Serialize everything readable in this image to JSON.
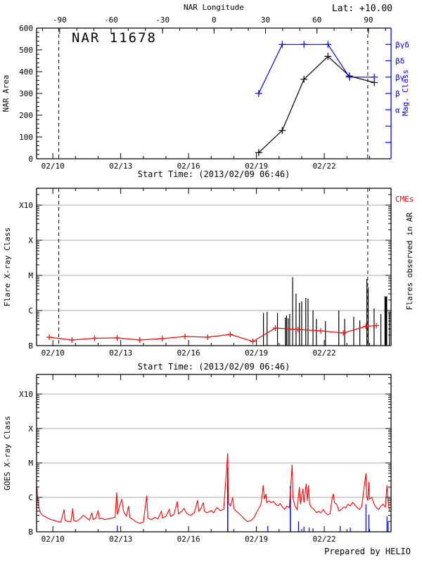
{
  "page": {
    "top_axis_label": "NAR Longitude",
    "lat_label": "Lat: +10.00",
    "footer": "Prepared by HELIO",
    "colors": {
      "accent_blue": "#0000ee",
      "accent_red": "#ff0000",
      "grid": "#aaaaaa",
      "axis": "#000000"
    }
  },
  "chart_data": [
    {
      "id": "nar-area-panel",
      "type": "line",
      "title": "NAR 11678",
      "ylabel": "NAR Area",
      "ylim": [
        0,
        600
      ],
      "yticks": [
        0,
        100,
        200,
        300,
        400,
        500,
        600
      ],
      "y_minor_step": 20,
      "x_domain_days": [
        9.28,
        24.95
      ],
      "xlabel": "Start Time: (2013/02/09 06:46)",
      "xticks": [
        {
          "day": 10,
          "label": "02/10"
        },
        {
          "day": 13,
          "label": "02/13"
        },
        {
          "day": 16,
          "label": "02/16"
        },
        {
          "day": 19,
          "label": "02/19"
        },
        {
          "day": 22,
          "label": "02/22"
        }
      ],
      "top_axis": {
        "label": "NAR Longitude",
        "ticks": [
          {
            "day": 10.3,
            "label": "-90"
          },
          {
            "day": 12.575,
            "label": "-60"
          },
          {
            "day": 14.85,
            "label": "-30"
          },
          {
            "day": 17.125,
            "label": "0"
          },
          {
            "day": 19.4,
            "label": "30"
          },
          {
            "day": 21.675,
            "label": "60"
          },
          {
            "day": 23.95,
            "label": "90"
          }
        ],
        "minor_step_days": 0.7583
      },
      "right_axis": {
        "label": "Mag. Class",
        "color": "#0000ee",
        "ticks": [
          {
            "value": 525,
            "label": "βγδ"
          },
          {
            "value": 450,
            "label": "βδ"
          },
          {
            "value": 375,
            "label": "βγ"
          },
          {
            "value": 300,
            "label": "β"
          },
          {
            "value": 225,
            "label": "α"
          },
          {
            "value": 150,
            "label": ""
          },
          {
            "value": 75,
            "label": ""
          }
        ]
      },
      "dashed_lines_days": [
        10.26,
        23.92
      ],
      "lat_label": "Lat: +10.00",
      "series": [
        {
          "name": "nar-area",
          "color": "#000000",
          "marker": "plus",
          "x": [
            19.1,
            20.14,
            21.1,
            22.16,
            23.11,
            24.21
          ],
          "y": [
            28,
            130,
            365,
            470,
            380,
            350
          ]
        },
        {
          "name": "mag-class",
          "color": "#0000ee",
          "marker": "plus",
          "x": [
            19.1,
            20.14,
            21.1,
            22.16,
            23.11,
            24.21
          ],
          "y": [
            300,
            525,
            525,
            525,
            375,
            375
          ],
          "class_labels": [
            "β",
            "βγδ",
            "βγδ",
            "βγδ",
            "βγ",
            "βγ"
          ]
        }
      ]
    },
    {
      "id": "flare-xray-panel",
      "type": "log-line-bars",
      "ylabel": "Flare X-ray Class",
      "yticks": [
        {
          "log": 0,
          "label": "B"
        },
        {
          "log": 1,
          "label": "C"
        },
        {
          "log": 2,
          "label": "M"
        },
        {
          "log": 3,
          "label": "X"
        },
        {
          "log": 4,
          "label": "X10"
        }
      ],
      "ylim_log": [
        0,
        4.48
      ],
      "grid_logs": [
        1,
        2,
        3,
        4
      ],
      "xlabel": "Start Time: (2013/02/09 06:46)",
      "xticks": [
        {
          "day": 10,
          "label": "02/10"
        },
        {
          "day": 13,
          "label": "02/13"
        },
        {
          "day": 16,
          "label": "02/16"
        },
        {
          "day": 19,
          "label": "02/19"
        },
        {
          "day": 22,
          "label": "02/22"
        }
      ],
      "dashed_lines_days": [
        10.26,
        23.92
      ],
      "right_labels": [
        {
          "text": "CMEs",
          "color": "#ff0000"
        },
        {
          "text": "Flares observed in AR",
          "color": "#000000"
        }
      ],
      "background_series": {
        "name": "daily-background-flux",
        "color": "#ff0000",
        "marker": "plus",
        "points": [
          [
            9.84,
            0.24
          ],
          [
            10.84,
            0.16
          ],
          [
            11.84,
            0.21
          ],
          [
            12.84,
            0.22
          ],
          [
            13.84,
            0.16
          ],
          [
            14.84,
            0.2
          ],
          [
            15.84,
            0.26
          ],
          [
            16.84,
            0.24
          ],
          [
            17.84,
            0.32
          ],
          [
            18.84,
            0.12
          ],
          [
            19.84,
            0.5
          ],
          [
            20.84,
            0.46
          ],
          [
            21.84,
            0.42
          ],
          [
            22.84,
            0.36
          ],
          [
            23.84,
            0.55
          ],
          [
            24.3,
            0.57
          ]
        ]
      },
      "flare_bars": {
        "name": "flares-in-ar",
        "color": "#000000",
        "points": [
          [
            19.31,
            0.93
          ],
          [
            19.47,
            0.96
          ],
          [
            19.93,
            0.93
          ],
          [
            20.28,
            0.8
          ],
          [
            20.33,
            0.86
          ],
          [
            20.4,
            0.78
          ],
          [
            20.47,
            0.9
          ],
          [
            20.6,
            1.95
          ],
          [
            20.75,
            1.48
          ],
          [
            20.9,
            1.22
          ],
          [
            21.0,
            1.26
          ],
          [
            21.18,
            1.36
          ],
          [
            21.28,
            1.34
          ],
          [
            21.5,
            1.0
          ],
          [
            21.65,
            0.76
          ],
          [
            22.05,
            0.7
          ],
          [
            22.64,
            1.0
          ],
          [
            22.9,
            0.76
          ],
          [
            23.3,
            0.82
          ],
          [
            23.57,
            0.72
          ],
          [
            23.88,
            1.9
          ],
          [
            23.94,
            1.66
          ],
          [
            24.2,
            1.06
          ],
          [
            24.5,
            0.9
          ],
          [
            24.7,
            1.4
          ],
          [
            24.74,
            1.4
          ],
          [
            24.88,
            0.95
          ]
        ]
      }
    },
    {
      "id": "goes-xray-panel",
      "type": "log-line",
      "ylabel": "GOES X-ray Class",
      "yticks": [
        {
          "log": 0,
          "label": "B"
        },
        {
          "log": 1,
          "label": "C"
        },
        {
          "log": 2,
          "label": "M"
        },
        {
          "log": 3,
          "label": "X"
        },
        {
          "log": 4,
          "label": "X10"
        }
      ],
      "ylim_log": [
        0,
        4.57
      ],
      "grid_logs": [
        1,
        2,
        3,
        4
      ],
      "xticks": [
        {
          "day": 10,
          "label": "02/10"
        },
        {
          "day": 13,
          "label": "02/13"
        },
        {
          "day": 16,
          "label": "02/16"
        },
        {
          "day": 19,
          "label": "02/19"
        },
        {
          "day": 22,
          "label": "02/22"
        }
      ],
      "goes_flux_series": {
        "name": "goes-long-channel",
        "color": "#ff0000",
        "points": [
          [
            9.3,
            1.3
          ],
          [
            9.33,
            0.95
          ],
          [
            9.38,
            0.7
          ],
          [
            9.45,
            0.55
          ],
          [
            9.55,
            0.48
          ],
          [
            9.7,
            0.42
          ],
          [
            9.9,
            0.36
          ],
          [
            10.05,
            0.33
          ],
          [
            10.2,
            0.3
          ],
          [
            10.35,
            0.28
          ],
          [
            10.5,
            0.65
          ],
          [
            10.53,
            0.34
          ],
          [
            10.65,
            0.3
          ],
          [
            10.8,
            0.3
          ],
          [
            10.88,
            0.68
          ],
          [
            10.92,
            0.33
          ],
          [
            11.05,
            0.3
          ],
          [
            11.2,
            0.38
          ],
          [
            11.35,
            0.48
          ],
          [
            11.5,
            0.4
          ],
          [
            11.62,
            0.34
          ],
          [
            11.72,
            0.55
          ],
          [
            11.78,
            0.36
          ],
          [
            11.9,
            0.4
          ],
          [
            12.0,
            0.62
          ],
          [
            12.05,
            0.38
          ],
          [
            12.15,
            0.4
          ],
          [
            12.3,
            0.35
          ],
          [
            12.45,
            0.38
          ],
          [
            12.6,
            0.4
          ],
          [
            12.75,
            0.42
          ],
          [
            12.82,
            1.15
          ],
          [
            12.86,
            0.5
          ],
          [
            12.95,
            0.75
          ],
          [
            13.05,
            0.95
          ],
          [
            13.12,
            0.6
          ],
          [
            13.25,
            0.45
          ],
          [
            13.35,
            0.75
          ],
          [
            13.4,
            0.42
          ],
          [
            13.55,
            0.35
          ],
          [
            13.7,
            0.28
          ],
          [
            13.85,
            0.25
          ],
          [
            14.0,
            0.28
          ],
          [
            14.15,
            1.05
          ],
          [
            14.2,
            0.4
          ],
          [
            14.35,
            0.35
          ],
          [
            14.5,
            0.42
          ],
          [
            14.65,
            0.38
          ],
          [
            14.8,
            0.6
          ],
          [
            14.85,
            0.4
          ],
          [
            15.0,
            0.45
          ],
          [
            15.15,
            0.65
          ],
          [
            15.2,
            0.45
          ],
          [
            15.35,
            0.5
          ],
          [
            15.5,
            0.88
          ],
          [
            15.55,
            0.52
          ],
          [
            15.7,
            0.6
          ],
          [
            15.8,
            0.68
          ],
          [
            15.9,
            0.55
          ],
          [
            16.0,
            0.5
          ],
          [
            16.1,
            0.48
          ],
          [
            16.25,
            0.55
          ],
          [
            16.4,
            0.92
          ],
          [
            16.45,
            0.6
          ],
          [
            16.55,
            0.68
          ],
          [
            16.65,
            0.85
          ],
          [
            16.7,
            0.6
          ],
          [
            16.8,
            0.55
          ],
          [
            16.9,
            0.58
          ],
          [
            17.0,
            0.62
          ],
          [
            17.1,
            0.55
          ],
          [
            17.25,
            0.7
          ],
          [
            17.4,
            0.62
          ],
          [
            17.55,
            0.65
          ],
          [
            17.73,
            2.28
          ],
          [
            17.76,
            0.85
          ],
          [
            17.85,
            0.75
          ],
          [
            17.95,
            1.0
          ],
          [
            18.0,
            0.68
          ],
          [
            18.1,
            0.6
          ],
          [
            18.2,
            0.55
          ],
          [
            18.35,
            0.45
          ],
          [
            18.5,
            0.35
          ],
          [
            18.6,
            0.3
          ],
          [
            18.75,
            0.32
          ],
          [
            18.9,
            0.42
          ],
          [
            19.0,
            0.55
          ],
          [
            19.1,
            0.68
          ],
          [
            19.2,
            0.8
          ],
          [
            19.3,
            1.35
          ],
          [
            19.35,
            0.95
          ],
          [
            19.42,
            1.1
          ],
          [
            19.45,
            0.85
          ],
          [
            19.55,
            0.9
          ],
          [
            19.65,
            0.85
          ],
          [
            19.75,
            0.88
          ],
          [
            19.85,
            0.8
          ],
          [
            19.95,
            0.75
          ],
          [
            20.05,
            0.82
          ],
          [
            20.15,
            0.72
          ],
          [
            20.25,
            0.65
          ],
          [
            20.35,
            0.75
          ],
          [
            20.45,
            0.7
          ],
          [
            20.58,
            1.95
          ],
          [
            20.61,
            1.0
          ],
          [
            20.7,
            0.75
          ],
          [
            20.8,
            0.65
          ],
          [
            20.9,
            1.3
          ],
          [
            20.95,
            0.8
          ],
          [
            21.05,
            1.25
          ],
          [
            21.1,
            0.85
          ],
          [
            21.2,
            1.4
          ],
          [
            21.25,
            0.9
          ],
          [
            21.3,
            1.35
          ],
          [
            21.35,
            0.8
          ],
          [
            21.45,
            0.7
          ],
          [
            21.55,
            0.65
          ],
          [
            21.65,
            0.55
          ],
          [
            21.75,
            0.6
          ],
          [
            21.85,
            0.55
          ],
          [
            21.95,
            0.65
          ],
          [
            22.05,
            0.55
          ],
          [
            22.15,
            0.5
          ],
          [
            22.25,
            0.52
          ],
          [
            22.35,
            1.0
          ],
          [
            22.4,
            1.1
          ],
          [
            22.45,
            0.85
          ],
          [
            22.55,
            0.8
          ],
          [
            22.65,
            0.6
          ],
          [
            22.75,
            0.65
          ],
          [
            22.85,
            0.72
          ],
          [
            22.95,
            0.7
          ],
          [
            23.05,
            0.8
          ],
          [
            23.15,
            0.75
          ],
          [
            23.25,
            0.85
          ],
          [
            23.35,
            0.78
          ],
          [
            23.45,
            0.7
          ],
          [
            23.55,
            0.65
          ],
          [
            23.65,
            0.72
          ],
          [
            23.84,
            1.7
          ],
          [
            23.87,
            1.05
          ],
          [
            23.92,
            0.9
          ],
          [
            23.97,
            1.45
          ],
          [
            24.0,
            0.95
          ],
          [
            24.1,
            1.0
          ],
          [
            24.2,
            0.8
          ],
          [
            24.3,
            0.7
          ],
          [
            24.4,
            0.65
          ],
          [
            24.5,
            0.75
          ],
          [
            24.6,
            0.8
          ],
          [
            24.7,
            0.72
          ],
          [
            24.77,
            1.35
          ],
          [
            24.82,
            0.9
          ],
          [
            24.88,
            0.6
          ]
        ]
      },
      "blue_spikes": {
        "name": "goes-short-channel-spikes",
        "color": "#0000ee",
        "points": [
          [
            12.85,
            0.18
          ],
          [
            17.73,
            1.88
          ],
          [
            19.5,
            0.17
          ],
          [
            20.5,
            1.33
          ],
          [
            20.86,
            0.3
          ],
          [
            21.1,
            0.15
          ],
          [
            21.33,
            0.12
          ],
          [
            21.5,
            0.1
          ],
          [
            22.7,
            0.17
          ],
          [
            23.15,
            0.12
          ],
          [
            23.84,
            0.8
          ],
          [
            23.97,
            0.5
          ],
          [
            24.77,
            0.45
          ],
          [
            24.82,
            0.3
          ]
        ]
      },
      "footer": "Prepared by HELIO"
    }
  ]
}
